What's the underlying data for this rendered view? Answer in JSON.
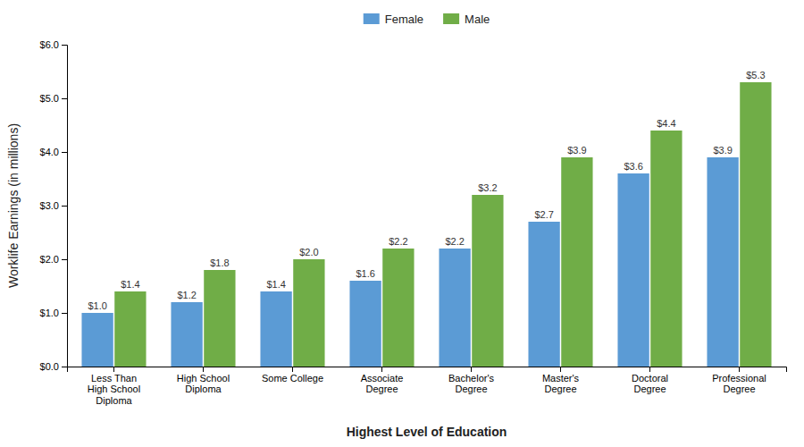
{
  "chart_data": {
    "type": "bar",
    "xlabel": "Highest Level of Education",
    "ylabel": "Worklife Earnings (in millions)",
    "categories": [
      "Less Than\nHigh School\nDiploma",
      "High School\nDiploma",
      "Some College",
      "Associate\nDegree",
      "Bachelor's\nDegree",
      "Master's\nDegree",
      "Doctoral\nDegree",
      "Professional\nDegree"
    ],
    "series": [
      {
        "name": "Female",
        "color": "#5B9BD5",
        "values": [
          1.0,
          1.2,
          1.4,
          1.6,
          2.2,
          2.7,
          3.6,
          3.9
        ],
        "value_labels": [
          "$1.0",
          "$1.2",
          "$1.4",
          "$1.6",
          "$2.2",
          "$2.7",
          "$3.6",
          "$3.9"
        ]
      },
      {
        "name": "Male",
        "color": "#70AD47",
        "values": [
          1.4,
          1.8,
          2.0,
          2.2,
          3.2,
          3.9,
          4.4,
          5.3
        ],
        "value_labels": [
          "$1.4",
          "$1.8",
          "$2.0",
          "$2.2",
          "$3.2",
          "$3.9",
          "$4.4",
          "$5.3"
        ]
      }
    ],
    "ylim": [
      0,
      6.0
    ],
    "yticks": [
      {
        "value": 0.0,
        "label": "$0.0"
      },
      {
        "value": 1.0,
        "label": "$1.0"
      },
      {
        "value": 2.0,
        "label": "$2.0"
      },
      {
        "value": 3.0,
        "label": "$3.0"
      },
      {
        "value": 4.0,
        "label": "$4.0"
      },
      {
        "value": 5.0,
        "label": "$5.0"
      },
      {
        "value": 6.0,
        "label": "$6.0"
      }
    ],
    "grid": false,
    "legend": "upper center",
    "data_labels": true
  }
}
